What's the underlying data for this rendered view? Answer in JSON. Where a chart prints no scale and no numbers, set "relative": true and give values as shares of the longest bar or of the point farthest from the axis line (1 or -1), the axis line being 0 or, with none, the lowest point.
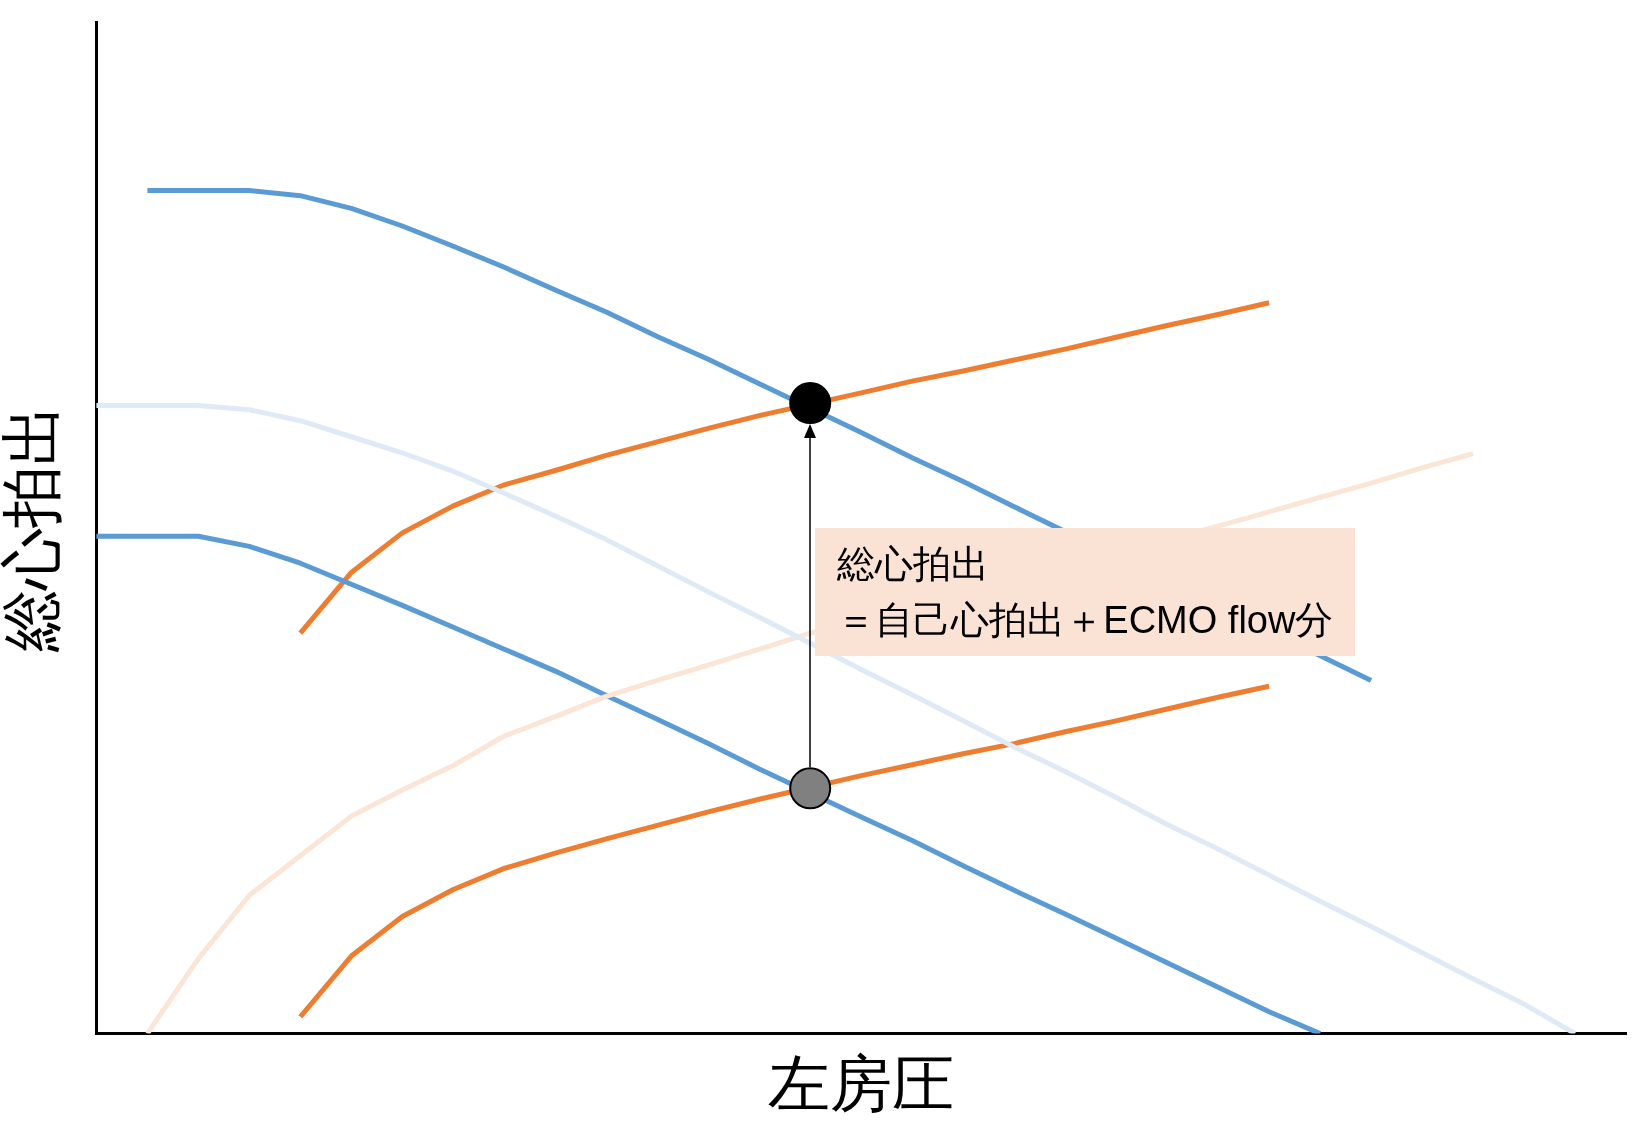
{
  "chart_data": {
    "type": "line",
    "relative": true,
    "xlabel": "左房圧",
    "ylabel": "総心拍出",
    "grid": false,
    "legend": false,
    "tick_labels": false,
    "marker": "none",
    "line_style": "solid",
    "categories": [
      null,
      null,
      null,
      null,
      null,
      null,
      null,
      null,
      null,
      null,
      null,
      null,
      null,
      null,
      null,
      null,
      null,
      null,
      null,
      null,
      null,
      null,
      null,
      null,
      null,
      null,
      null,
      null,
      null,
      null,
      null
    ],
    "annotations": [
      "総心拍出",
      "＝自己心拍出＋ECMO flow分"
    ],
    "series": [
      {
        "color": "#deebf7",
        "values": [
          0.745,
          0.745,
          0.745,
          0.74,
          0.727,
          0.708,
          0.689,
          0.667,
          0.641,
          0.614,
          0.586,
          0.555,
          0.524,
          0.494,
          0.463,
          0.432,
          0.402,
          0.371,
          0.34,
          0.311,
          0.28,
          0.248,
          0.219,
          0.188,
          0.157,
          0.127,
          0.096,
          0.065,
          0.035,
          0,
          null
        ]
      },
      {
        "color": "#fbe5d6",
        "values": [
          null,
          0,
          0.089,
          0.164,
          0.211,
          0.258,
          0.289,
          0.318,
          0.353,
          0.376,
          0.4,
          0.419,
          0.437,
          0.456,
          0.475,
          null,
          null,
          null,
          null,
          null,
          null,
          null,
          0.602,
          0.619,
          0.636,
          0.653,
          0.671,
          0.688,
          null,
          null,
          null
        ]
      },
      {
        "color": "#5b9bd5",
        "values": [
          null,
          1,
          1,
          1,
          0.994,
          0.979,
          0.958,
          0.934,
          0.909,
          0.882,
          0.856,
          0.827,
          0.8,
          0.771,
          null,
          0.713,
          0.683,
          0.655,
          0.625,
          null,
          null,
          null,
          null,
          null,
          null,
          0.419,
          null,
          null,
          null,
          null,
          null
        ]
      },
      {
        "color": "#5b9bd5",
        "values": [
          0.59,
          0.59,
          0.59,
          0.578,
          0.558,
          0.533,
          0.508,
          0.482,
          0.456,
          0.43,
          0.401,
          0.373,
          0.344,
          0.314,
          null,
          0.257,
          0.229,
          0.199,
          0.17,
          0.142,
          0.113,
          0.084,
          0.055,
          0.026,
          0,
          null,
          null,
          null,
          null,
          null,
          null
        ]
      },
      {
        "color": "#ed7d31",
        "values": [
          null,
          null,
          null,
          null,
          0.475,
          0.547,
          0.594,
          0.626,
          0.651,
          0.668,
          0.686,
          0.702,
          0.718,
          0.733,
          null,
          0.76,
          0.774,
          0.786,
          0.799,
          0.812,
          0.826,
          0.84,
          0.853,
          0.867,
          null,
          null,
          null,
          null,
          null,
          null,
          null
        ]
      },
      {
        "color": "#ed7d31",
        "values": [
          null,
          null,
          null,
          null,
          0.02,
          0.092,
          0.139,
          0.171,
          0.196,
          0.214,
          0.231,
          0.247,
          0.263,
          0.278,
          null,
          0.306,
          0.319,
          0.332,
          0.344,
          0.358,
          0.371,
          0.385,
          0.399,
          0.412,
          null,
          null,
          null,
          null,
          null,
          null,
          null
        ]
      },
      {
        "marker": "circle",
        "color": "#808080",
        "values": [
          null,
          null,
          null,
          null,
          null,
          null,
          null,
          null,
          null,
          null,
          null,
          null,
          null,
          null,
          0.291,
          null,
          null,
          null,
          null,
          null,
          null,
          null,
          null,
          null,
          null,
          null,
          null,
          null,
          null,
          null,
          null
        ]
      },
      {
        "marker": "circle",
        "color": "#000000",
        "values": [
          null,
          null,
          null,
          null,
          null,
          null,
          null,
          null,
          null,
          null,
          null,
          null,
          null,
          null,
          0.748,
          null,
          null,
          null,
          null,
          null,
          null,
          null,
          null,
          null,
          null,
          null,
          null,
          null,
          null,
          null,
          null
        ]
      }
    ]
  }
}
